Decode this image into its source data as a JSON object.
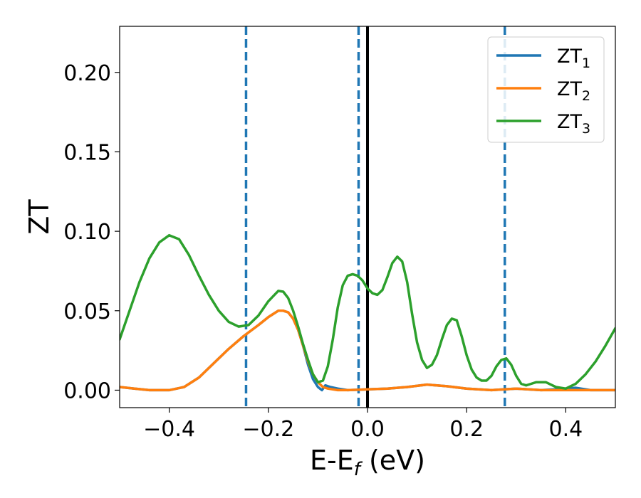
{
  "chart_data": {
    "type": "line",
    "title": "",
    "xlabel": {
      "main": "E-E",
      "sub": "f",
      "unit": " (eV)"
    },
    "ylabel": "ZT",
    "xlim": [
      -0.5,
      0.5
    ],
    "ylim": [
      -0.011,
      0.229
    ],
    "x_ticks": [
      -0.4,
      -0.2,
      0.0,
      0.2,
      0.4
    ],
    "x_tick_labels": [
      "−0.4",
      "−0.2",
      "0.0",
      "0.2",
      "0.4"
    ],
    "y_ticks": [
      0.0,
      0.05,
      0.1,
      0.15,
      0.2
    ],
    "y_tick_labels": [
      "0.00",
      "0.05",
      "0.10",
      "0.15",
      "0.20"
    ],
    "grid": false,
    "legend_position": "top-right",
    "vertical_lines": [
      {
        "x": -0.245,
        "style": "dashed",
        "color": "#1f77b4"
      },
      {
        "x": -0.018,
        "style": "dashed",
        "color": "#1f77b4"
      },
      {
        "x": 0.0,
        "style": "solid",
        "color": "#000000"
      },
      {
        "x": 0.277,
        "style": "dashed",
        "color": "#1f77b4"
      }
    ],
    "series": [
      {
        "name": "ZT",
        "sub": "1",
        "color": "#1f77b4",
        "points": [
          [
            -0.5,
            0.002
          ],
          [
            -0.47,
            0.001
          ],
          [
            -0.44,
            0.0
          ],
          [
            -0.4,
            0.0
          ],
          [
            -0.37,
            0.002
          ],
          [
            -0.34,
            0.008
          ],
          [
            -0.31,
            0.017
          ],
          [
            -0.28,
            0.026
          ],
          [
            -0.25,
            0.034
          ],
          [
            -0.22,
            0.041
          ],
          [
            -0.2,
            0.046
          ],
          [
            -0.18,
            0.05
          ],
          [
            -0.17,
            0.05
          ],
          [
            -0.16,
            0.049
          ],
          [
            -0.15,
            0.045
          ],
          [
            -0.14,
            0.038
          ],
          [
            -0.13,
            0.028
          ],
          [
            -0.12,
            0.016
          ],
          [
            -0.11,
            0.007
          ],
          [
            -0.1,
            0.002
          ],
          [
            -0.092,
            0.0
          ],
          [
            -0.085,
            0.003
          ],
          [
            -0.075,
            0.002
          ],
          [
            -0.06,
            0.001
          ],
          [
            -0.04,
            0.0
          ],
          [
            0.0,
            0.0005
          ],
          [
            0.04,
            0.001
          ],
          [
            0.08,
            0.002
          ],
          [
            0.12,
            0.0035
          ],
          [
            0.16,
            0.0025
          ],
          [
            0.2,
            0.001
          ],
          [
            0.25,
            0.0
          ],
          [
            0.3,
            0.001
          ],
          [
            0.35,
            0.0
          ],
          [
            0.38,
            0.0005
          ],
          [
            0.42,
            0.0015
          ],
          [
            0.45,
            0.0
          ],
          [
            0.5,
            0.0
          ]
        ]
      },
      {
        "name": "ZT",
        "sub": "2",
        "color": "#ff7f0e",
        "points": [
          [
            -0.5,
            0.002
          ],
          [
            -0.47,
            0.001
          ],
          [
            -0.44,
            0.0
          ],
          [
            -0.4,
            0.0
          ],
          [
            -0.37,
            0.002
          ],
          [
            -0.34,
            0.008
          ],
          [
            -0.31,
            0.017
          ],
          [
            -0.28,
            0.026
          ],
          [
            -0.25,
            0.034
          ],
          [
            -0.22,
            0.041
          ],
          [
            -0.2,
            0.046
          ],
          [
            -0.18,
            0.05
          ],
          [
            -0.17,
            0.05
          ],
          [
            -0.16,
            0.049
          ],
          [
            -0.15,
            0.045
          ],
          [
            -0.14,
            0.038
          ],
          [
            -0.13,
            0.028
          ],
          [
            -0.12,
            0.018
          ],
          [
            -0.11,
            0.01
          ],
          [
            -0.1,
            0.005
          ],
          [
            -0.09,
            0.002
          ],
          [
            -0.08,
            0.001
          ],
          [
            -0.06,
            0.0
          ],
          [
            -0.04,
            0.0
          ],
          [
            0.0,
            0.0005
          ],
          [
            0.04,
            0.001
          ],
          [
            0.08,
            0.002
          ],
          [
            0.12,
            0.0035
          ],
          [
            0.16,
            0.0025
          ],
          [
            0.2,
            0.001
          ],
          [
            0.25,
            0.0
          ],
          [
            0.3,
            0.001
          ],
          [
            0.35,
            0.0
          ],
          [
            0.38,
            0.0
          ],
          [
            0.42,
            0.0
          ],
          [
            0.45,
            0.0
          ],
          [
            0.5,
            0.0
          ]
        ]
      },
      {
        "name": "ZT",
        "sub": "3",
        "color": "#2ca02c",
        "points": [
          [
            -0.5,
            0.032
          ],
          [
            -0.48,
            0.05
          ],
          [
            -0.46,
            0.068
          ],
          [
            -0.44,
            0.083
          ],
          [
            -0.42,
            0.093
          ],
          [
            -0.4,
            0.0975
          ],
          [
            -0.38,
            0.095
          ],
          [
            -0.36,
            0.085
          ],
          [
            -0.34,
            0.072
          ],
          [
            -0.32,
            0.06
          ],
          [
            -0.3,
            0.05
          ],
          [
            -0.28,
            0.043
          ],
          [
            -0.26,
            0.04
          ],
          [
            -0.24,
            0.041
          ],
          [
            -0.22,
            0.047
          ],
          [
            -0.2,
            0.056
          ],
          [
            -0.18,
            0.0625
          ],
          [
            -0.17,
            0.062
          ],
          [
            -0.16,
            0.058
          ],
          [
            -0.15,
            0.05
          ],
          [
            -0.14,
            0.04
          ],
          [
            -0.13,
            0.029
          ],
          [
            -0.12,
            0.019
          ],
          [
            -0.11,
            0.01
          ],
          [
            -0.1,
            0.005
          ],
          [
            -0.09,
            0.006
          ],
          [
            -0.08,
            0.015
          ],
          [
            -0.07,
            0.032
          ],
          [
            -0.06,
            0.052
          ],
          [
            -0.05,
            0.066
          ],
          [
            -0.04,
            0.072
          ],
          [
            -0.03,
            0.073
          ],
          [
            -0.02,
            0.072
          ],
          [
            -0.01,
            0.069
          ],
          [
            0.0,
            0.064
          ],
          [
            0.01,
            0.061
          ],
          [
            0.02,
            0.06
          ],
          [
            0.03,
            0.063
          ],
          [
            0.04,
            0.071
          ],
          [
            0.05,
            0.08
          ],
          [
            0.06,
            0.084
          ],
          [
            0.07,
            0.081
          ],
          [
            0.08,
            0.068
          ],
          [
            0.09,
            0.048
          ],
          [
            0.1,
            0.03
          ],
          [
            0.11,
            0.019
          ],
          [
            0.12,
            0.014
          ],
          [
            0.13,
            0.016
          ],
          [
            0.14,
            0.022
          ],
          [
            0.15,
            0.032
          ],
          [
            0.16,
            0.041
          ],
          [
            0.17,
            0.045
          ],
          [
            0.18,
            0.044
          ],
          [
            0.19,
            0.034
          ],
          [
            0.2,
            0.022
          ],
          [
            0.21,
            0.013
          ],
          [
            0.22,
            0.008
          ],
          [
            0.23,
            0.006
          ],
          [
            0.24,
            0.006
          ],
          [
            0.25,
            0.009
          ],
          [
            0.26,
            0.015
          ],
          [
            0.27,
            0.019
          ],
          [
            0.28,
            0.02
          ],
          [
            0.29,
            0.016
          ],
          [
            0.3,
            0.009
          ],
          [
            0.31,
            0.004
          ],
          [
            0.32,
            0.003
          ],
          [
            0.33,
            0.004
          ],
          [
            0.34,
            0.005
          ],
          [
            0.36,
            0.005
          ],
          [
            0.38,
            0.002
          ],
          [
            0.4,
            0.001
          ],
          [
            0.42,
            0.004
          ],
          [
            0.44,
            0.01
          ],
          [
            0.46,
            0.018
          ],
          [
            0.48,
            0.028
          ],
          [
            0.5,
            0.039
          ]
        ]
      }
    ]
  }
}
